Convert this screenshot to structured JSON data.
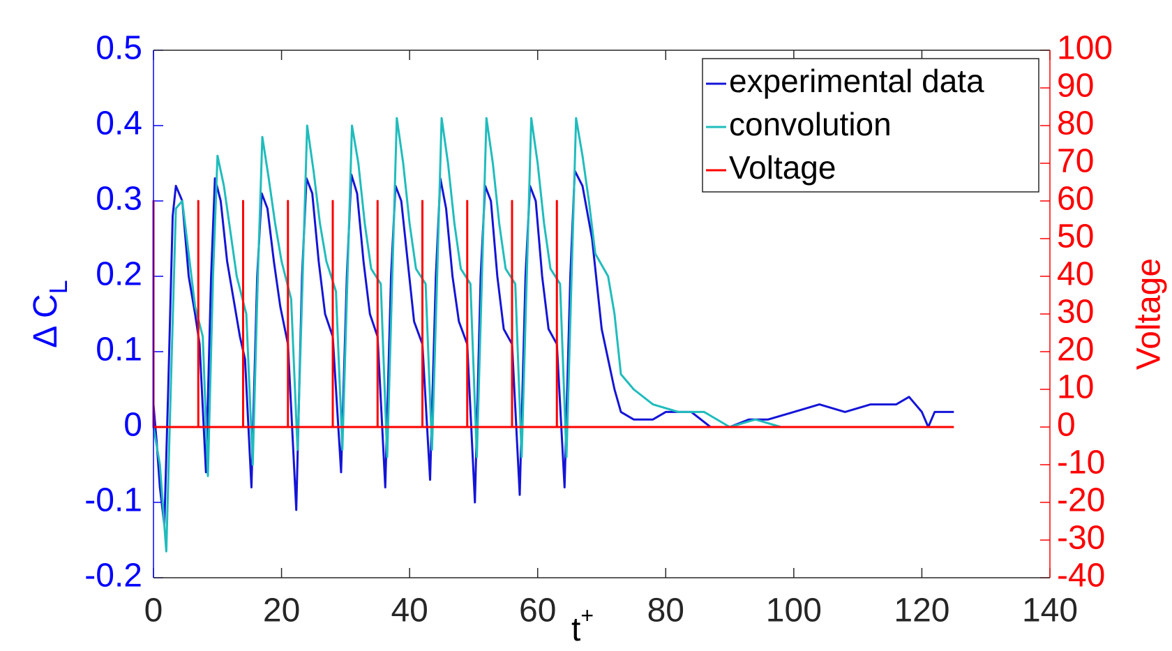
{
  "chart_data": {
    "type": "line",
    "xlabel": {
      "base": "t",
      "sup": "+"
    },
    "ylabel": {
      "base": "Δ C",
      "sub": "L"
    },
    "y2label": "Voltage",
    "xlim": [
      0,
      140
    ],
    "xticks": [
      0,
      20,
      40,
      60,
      80,
      100,
      120,
      140
    ],
    "ylim": [
      -0.2,
      0.5
    ],
    "yticks": [
      -0.2,
      -0.1,
      0,
      0.1,
      0.2,
      0.3,
      0.4,
      0.5
    ],
    "y2lim": [
      -40,
      100
    ],
    "y2ticks": [
      -40,
      -30,
      -20,
      -10,
      0,
      10,
      20,
      30,
      40,
      50,
      60,
      70,
      80,
      90,
      100
    ],
    "yaxis_color": "#0000ff",
    "y2axis_color": "#ff0000",
    "legend": "northeast",
    "series": [
      {
        "name": "experimental data",
        "color": "#1414d8",
        "x": [
          0,
          0.5,
          1,
          1.7,
          2.3,
          3,
          3.5,
          4.5,
          5.5,
          6.5,
          7.2,
          8.2,
          9,
          9.6,
          10.5,
          11.5,
          12.5,
          13.5,
          14.3,
          15.3,
          16.2,
          16.9,
          17.8,
          18.8,
          19.8,
          21,
          22.3,
          23.2,
          23.9,
          24.8,
          25.8,
          26.8,
          28,
          29.3,
          30.2,
          30.9,
          31.8,
          32.8,
          33.8,
          35,
          36.2,
          37.1,
          37.8,
          38.7,
          39.7,
          40.7,
          42,
          43.2,
          44.1,
          44.8,
          45.7,
          46.7,
          47.7,
          49,
          50.2,
          51.1,
          51.8,
          52.7,
          53.7,
          54.7,
          56,
          57.2,
          58.1,
          58.8,
          59.7,
          60.7,
          61.7,
          63,
          64.2,
          65.1,
          65.8,
          67,
          68.5,
          70,
          71,
          72,
          73,
          75,
          78,
          80,
          84,
          87,
          90,
          93,
          96,
          100,
          104,
          108,
          112,
          116,
          118,
          120,
          121,
          122,
          125
        ],
        "values": [
          0.03,
          -0.02,
          -0.08,
          -0.13,
          0.05,
          0.28,
          0.32,
          0.3,
          0.2,
          0.15,
          0.11,
          -0.06,
          0.2,
          0.33,
          0.3,
          0.22,
          0.17,
          0.12,
          0.09,
          -0.08,
          0.2,
          0.31,
          0.29,
          0.22,
          0.16,
          0.11,
          -0.11,
          0.2,
          0.33,
          0.31,
          0.22,
          0.15,
          0.12,
          -0.06,
          0.2,
          0.335,
          0.31,
          0.22,
          0.15,
          0.12,
          -0.08,
          0.2,
          0.32,
          0.3,
          0.22,
          0.14,
          0.11,
          -0.07,
          0.2,
          0.33,
          0.29,
          0.2,
          0.14,
          0.11,
          -0.1,
          0.2,
          0.32,
          0.3,
          0.2,
          0.13,
          0.11,
          -0.09,
          0.2,
          0.32,
          0.3,
          0.2,
          0.13,
          0.11,
          -0.08,
          0.2,
          0.34,
          0.32,
          0.25,
          0.13,
          0.09,
          0.05,
          0.02,
          0.01,
          0.01,
          0.02,
          0.02,
          0,
          0,
          0.01,
          0.01,
          0.02,
          0.03,
          0.02,
          0.03,
          0.03,
          0.04,
          0.02,
          0,
          0.02,
          0.02
        ]
      },
      {
        "name": "convolution",
        "color": "#1fbcbc",
        "x": [
          0,
          1,
          2,
          2.7,
          3.5,
          4.5,
          5.5,
          6.5,
          7.7,
          8.5,
          9.3,
          10,
          11,
          12,
          13,
          14.5,
          15.5,
          16.3,
          17,
          18,
          19,
          20,
          21.5,
          22.5,
          23.3,
          24,
          25,
          26,
          27,
          28.5,
          29.5,
          30.3,
          31,
          32,
          33,
          34,
          35.5,
          36.5,
          37.3,
          38,
          39,
          40,
          41,
          42.5,
          43.5,
          44.3,
          45,
          46,
          47,
          48,
          49.5,
          50.5,
          51.3,
          52,
          53,
          54,
          55,
          56.5,
          57.5,
          58.3,
          59,
          60,
          61,
          62,
          63.5,
          64.5,
          65.3,
          66,
          67,
          68,
          69,
          71,
          72,
          73,
          75,
          78,
          82,
          86,
          90,
          94,
          98,
          102,
          106,
          110,
          113
        ],
        "values": [
          0,
          -0.05,
          -0.165,
          0.05,
          0.29,
          0.3,
          0.23,
          0.16,
          0.12,
          -0.065,
          0.2,
          0.36,
          0.32,
          0.26,
          0.2,
          0.15,
          -0.05,
          0.2,
          0.385,
          0.33,
          0.27,
          0.22,
          0.17,
          -0.03,
          0.2,
          0.4,
          0.34,
          0.27,
          0.22,
          0.18,
          -0.03,
          0.2,
          0.4,
          0.35,
          0.27,
          0.21,
          0.19,
          -0.04,
          0.2,
          0.41,
          0.35,
          0.27,
          0.21,
          0.19,
          -0.03,
          0.2,
          0.41,
          0.35,
          0.27,
          0.21,
          0.19,
          -0.04,
          0.2,
          0.41,
          0.35,
          0.27,
          0.21,
          0.19,
          -0.04,
          0.2,
          0.41,
          0.35,
          0.27,
          0.21,
          0.19,
          -0.04,
          0.2,
          0.41,
          0.36,
          0.3,
          0.23,
          0.2,
          0.15,
          0.07,
          0.05,
          0.03,
          0.02,
          0.02,
          0,
          0.01,
          0,
          0,
          0,
          0,
          0
        ]
      },
      {
        "name": "Voltage",
        "color": "#ff0000",
        "axis": "y2",
        "x": [
          0,
          0,
          0,
          7,
          7,
          7,
          14,
          14,
          14,
          21,
          21,
          21,
          28,
          28,
          28,
          35,
          35,
          35,
          42,
          42,
          42,
          49,
          49,
          49,
          56,
          56,
          56,
          63,
          63,
          63,
          125
        ],
        "values": [
          0,
          60,
          0,
          0,
          60,
          0,
          0,
          60,
          0,
          0,
          60,
          0,
          0,
          60,
          0,
          0,
          60,
          0,
          0,
          60,
          0,
          0,
          60,
          0,
          0,
          60,
          0,
          0,
          60,
          0,
          0
        ]
      }
    ]
  }
}
